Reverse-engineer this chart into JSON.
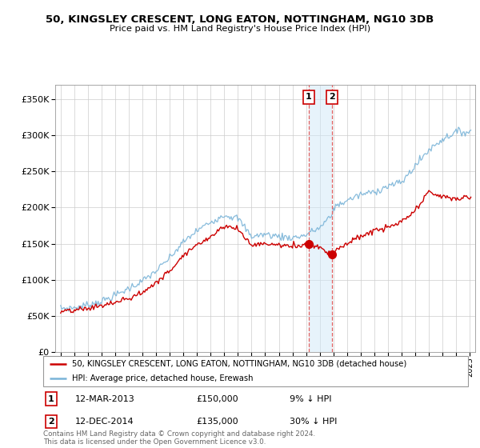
{
  "title": "50, KINGSLEY CRESCENT, LONG EATON, NOTTINGHAM, NG10 3DB",
  "subtitle": "Price paid vs. HM Land Registry's House Price Index (HPI)",
  "legend_line1": "50, KINGSLEY CRESCENT, LONG EATON, NOTTINGHAM, NG10 3DB (detached house)",
  "legend_line2": "HPI: Average price, detached house, Erewash",
  "sale1_date": "12-MAR-2013",
  "sale1_price": "£150,000",
  "sale1_hpi": "9% ↓ HPI",
  "sale2_date": "12-DEC-2014",
  "sale2_price": "£135,000",
  "sale2_hpi": "30% ↓ HPI",
  "footer": "Contains HM Land Registry data © Crown copyright and database right 2024.\nThis data is licensed under the Open Government Licence v3.0.",
  "hpi_color": "#7ab4d8",
  "price_color": "#cc0000",
  "sale1_x": 2013.2,
  "sale1_y": 150000,
  "sale2_x": 2014.92,
  "sale2_y": 135000,
  "ylim": [
    0,
    370000
  ],
  "yticks": [
    0,
    50000,
    100000,
    150000,
    200000,
    250000,
    300000,
    350000
  ],
  "xlim": [
    1994.6,
    2025.4
  ],
  "shade_color": "#d0e8f8"
}
